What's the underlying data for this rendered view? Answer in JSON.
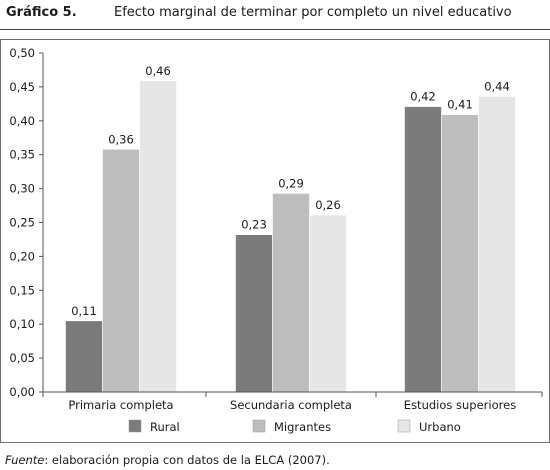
{
  "header": {
    "figure_label": "Gráfico 5.",
    "title": "Efecto marginal de terminar por completo un nivel educativo"
  },
  "source": {
    "prefix": "Fuente",
    "text": ": elaboración propia con datos de la ELCA (2007)."
  },
  "chart_data": {
    "type": "bar",
    "title": "Efecto marginal de terminar por completo un nivel educativo",
    "categories": [
      "Primaria completa",
      "Secundaria completa",
      "Estudios superiores"
    ],
    "series": [
      {
        "name": "Rural",
        "values": [
          0.105,
          0.232,
          0.421
        ],
        "labels": [
          "0,11",
          "0,23",
          "0,42"
        ],
        "color": "#7b7b7b"
      },
      {
        "name": "Migrantes",
        "values": [
          0.358,
          0.293,
          0.409
        ],
        "labels": [
          "0,36",
          "0,29",
          "0,41"
        ],
        "color": "#bdbdbd"
      },
      {
        "name": "Urbano",
        "values": [
          0.459,
          0.261,
          0.436
        ],
        "labels": [
          "0,46",
          "0,26",
          "0,44"
        ],
        "color": "#e6e6e6"
      }
    ],
    "ylim": [
      0,
      0.5
    ],
    "yticks": [
      0,
      0.05,
      0.1,
      0.15,
      0.2,
      0.25,
      0.3,
      0.35,
      0.4,
      0.45,
      0.5
    ],
    "ytick_labels": [
      "0,00",
      "0,05",
      "0,10",
      "0,15",
      "0,20",
      "0,25",
      "0,30",
      "0,35",
      "0,40",
      "0,45",
      "0,50"
    ],
    "grid": false,
    "legend_position": "bottom"
  }
}
